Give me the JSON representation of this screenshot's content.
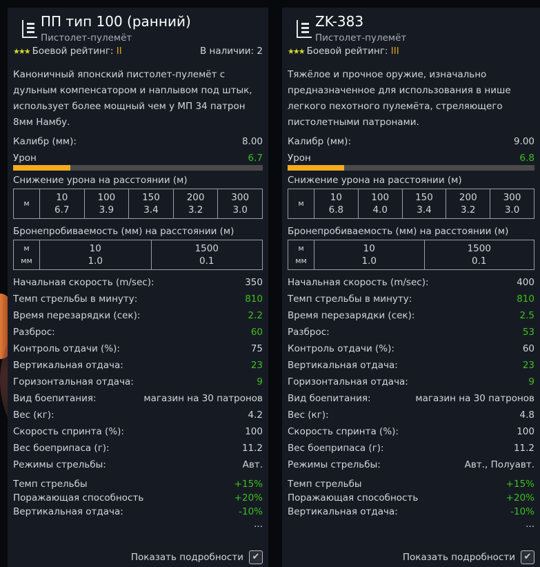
{
  "labels": {
    "rating": "Боевой рейтинг:",
    "caliber": "Калибр (мм):",
    "damage": "Урон",
    "dropoff_title": "Снижение урона на расстоянии (м)",
    "pen_title": "Бронепробиваемость (мм) на расстоянии (м)",
    "m": "м",
    "mm": "мм",
    "show_details": "Показать подробности",
    "more": "...",
    "stats": [
      "Начальная скорость (m/sec):",
      "Темп стрельбы в минуту:",
      "Время перезарядки (сек):",
      "Разброс:",
      "Контроль отдачи (%):",
      "Вертикальная отдача:",
      "Горизонтальная отдача:",
      "Вид боепитания:",
      "Вес (кг):",
      "Скорость спринта (%):",
      "Вес боеприпаса (г):",
      "Режимы стрельбы:"
    ],
    "mods": [
      "Темп стрельбы",
      "Поражающая способность",
      "Вертикальная отдача:"
    ]
  },
  "colors": {
    "positive": "#3fbf23",
    "tier": "#e3a21d",
    "bar": "#f5ab1c"
  },
  "weapons": [
    {
      "name": "ПП тип 100 (ранний)",
      "type": "Пистолет-пулемёт",
      "stars": "★★★",
      "tier": "II",
      "available": "В наличии: 2",
      "description": "Каноничный японский пистолет-пулемёт с дульным компенсатором и наплывом под штык, использует более мощный чем у МП 34 патрон 8мм Намбу.",
      "caliber": "8.00",
      "damage": "6.7",
      "damage_bar_pct": 23,
      "dropoff": {
        "ranges": [
          "10",
          "100",
          "150",
          "200",
          "300"
        ],
        "values": [
          "6.7",
          "3.9",
          "3.4",
          "3.2",
          "3.0"
        ]
      },
      "pen": {
        "ranges": [
          "10",
          "1500"
        ],
        "values": [
          "1.0",
          "0.1"
        ]
      },
      "stats": [
        "350",
        "810",
        "2.2",
        "60",
        "75",
        "23",
        "9",
        "магазин на 30 патронов",
        "4.2",
        "100",
        "11.2",
        "Авт."
      ],
      "stats_green": [
        false,
        true,
        true,
        true,
        false,
        true,
        true,
        false,
        false,
        false,
        false,
        false
      ],
      "mods": [
        "+15%",
        "+20%",
        "-10%"
      ],
      "show_details_checked": true
    },
    {
      "name": "ZK-383",
      "type": "Пистолет-пулемёт",
      "stars": "★★★",
      "tier": "III",
      "available": "",
      "description": "Тяжёлое и прочное оружие, изначально предназначенное для использования в нише легкого пехотного пулемёта, стреляющего пистолетными патронами.",
      "caliber": "9.00",
      "damage": "6.8",
      "damage_bar_pct": 23,
      "dropoff": {
        "ranges": [
          "10",
          "100",
          "150",
          "200",
          "300"
        ],
        "values": [
          "6.8",
          "4.0",
          "3.4",
          "3.2",
          "3.0"
        ]
      },
      "pen": {
        "ranges": [
          "10",
          "1500"
        ],
        "values": [
          "1.0",
          "0.1"
        ]
      },
      "stats": [
        "400",
        "810",
        "2.5",
        "53",
        "60",
        "23",
        "9",
        "магазин на 30 патронов",
        "4.8",
        "100",
        "11.2",
        "Авт., Полуавт."
      ],
      "stats_green": [
        false,
        true,
        true,
        true,
        false,
        true,
        true,
        false,
        false,
        false,
        false,
        false
      ],
      "mods": [
        "+15%",
        "+20%",
        "-10%"
      ],
      "show_details_checked": true
    }
  ]
}
